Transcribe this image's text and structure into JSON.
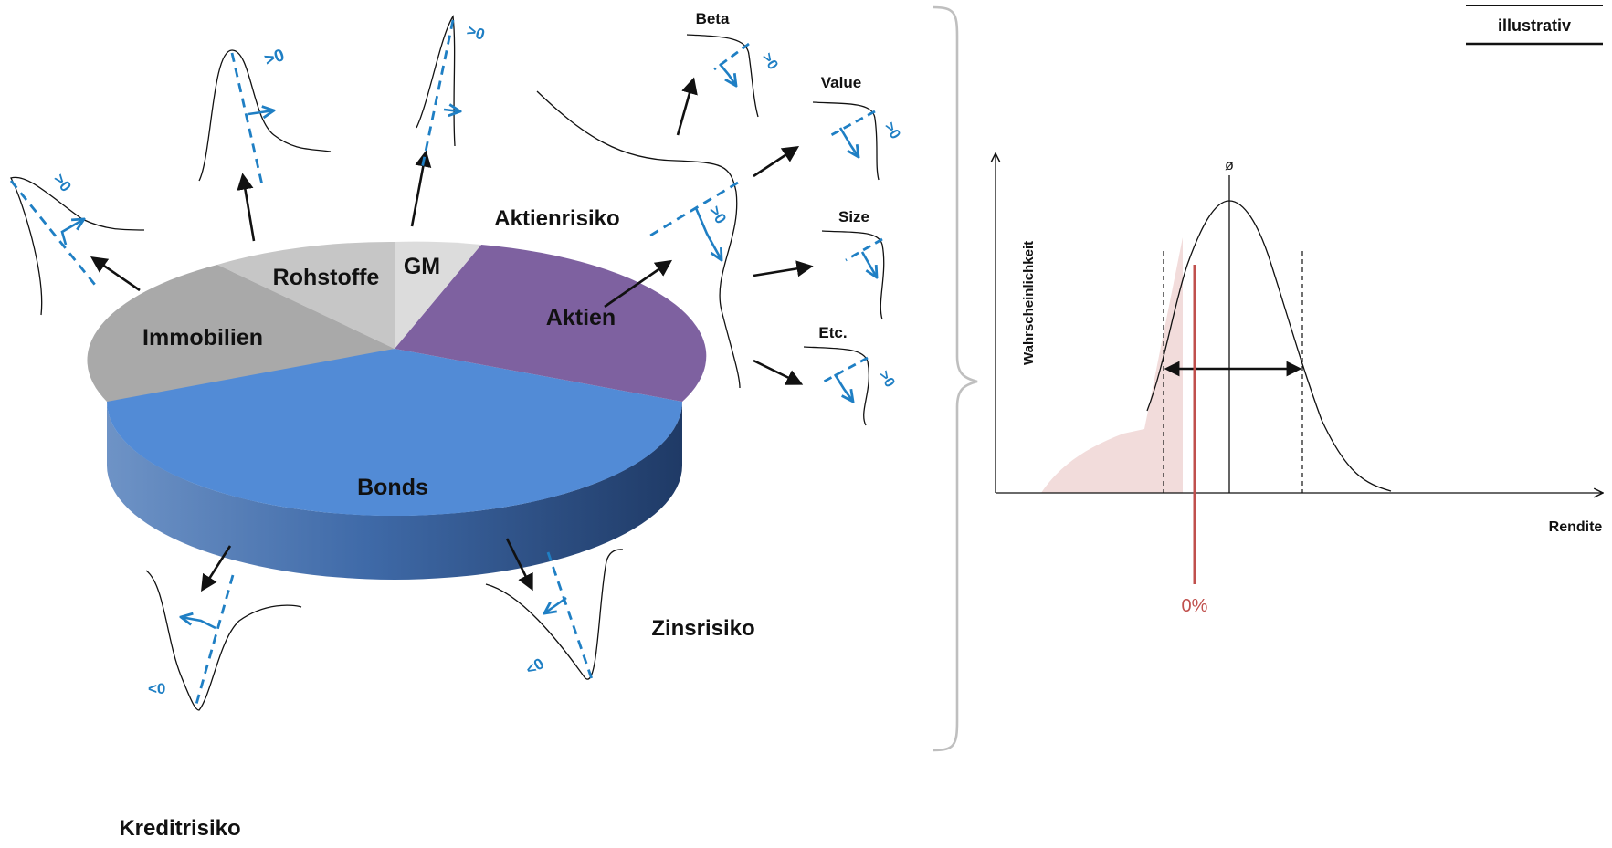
{
  "stamp": "illustrativ",
  "pie": {
    "slices": [
      {
        "label": "Bonds",
        "color": "#528bd6"
      },
      {
        "label": "Aktien",
        "color": "#7e61a0"
      },
      {
        "label": "GM",
        "color": "#dcdcdc"
      },
      {
        "label": "Rohstoffe",
        "color": "#c6c6c6"
      },
      {
        "label": "Immobilien",
        "color": "#a9a9a9"
      }
    ]
  },
  "risk_labels": {
    "aktienrisiko": "Aktienrisiko",
    "zinsrisiko": "Zinsrisiko",
    "kreditrisiko": "Kreditrisiko"
  },
  "factors": {
    "beta": "Beta",
    "value": "Value",
    "size": "Size",
    "etc": "Etc."
  },
  "markers": {
    "gt0": ">0",
    "lt0": "<0"
  },
  "distribution_chart": {
    "ylabel": "Wahrscheinlichkeit",
    "xlabel": "Rendite",
    "mean_symbol": "ø",
    "zero_label": "0%",
    "colors": {
      "curve": "#111111",
      "zero_line": "#c0504d",
      "shade": "#f2dcdb",
      "dashed": "#1f7fc4"
    }
  }
}
